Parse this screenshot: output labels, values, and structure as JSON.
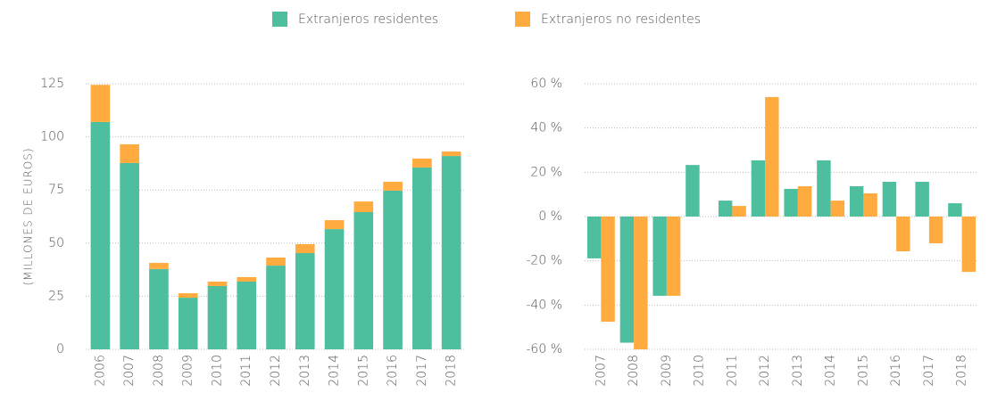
{
  "chart_data": [
    {
      "type": "stacked-bar",
      "y_label": "(MILLONES DE EUROS)",
      "categories": [
        "2006",
        "2007",
        "2008",
        "2009",
        "2010",
        "2011",
        "2012",
        "2013",
        "2014",
        "2015",
        "2016",
        "2017",
        "2018"
      ],
      "series": [
        {
          "name": "Extranjeros residentes",
          "color": "#4dbf9f",
          "values": [
            107,
            87.7,
            37.8,
            24.3,
            29.8,
            31.9,
            39.4,
            45.3,
            56.6,
            64.6,
            74.7,
            85.6,
            91
          ]
        },
        {
          "name": "Extranjeros no residentes",
          "color": "#ffab40",
          "values": [
            17.5,
            8.8,
            2.9,
            2.1,
            2.1,
            2.1,
            3.8,
            4.2,
            4.2,
            5,
            4.2,
            4.2,
            2.1
          ]
        }
      ],
      "ylim": [
        0,
        125
      ],
      "yticks": [
        0,
        25,
        50,
        75,
        100,
        125
      ],
      "grid": true
    },
    {
      "type": "grouped-bar",
      "categories": [
        "2007",
        "2008",
        "2009",
        "2010",
        "2011",
        "2012",
        "2013",
        "2014",
        "2015",
        "2016",
        "2017",
        "2018"
      ],
      "series": [
        {
          "color": "#4dbf9f",
          "values": [
            -18.9,
            -57,
            -35.8,
            23.3,
            7.2,
            25.4,
            12.5,
            25.4,
            13.7,
            15.7,
            15.7,
            6
          ]
        },
        {
          "color": "#ffab40",
          "values": [
            -47.5,
            -60,
            -35.8,
            0,
            4.8,
            54,
            13.7,
            7.2,
            10.5,
            -15.7,
            -12.1,
            -25
          ]
        }
      ],
      "ylim": [
        -60,
        60
      ],
      "yticks": [
        {
          "value": -60,
          "label": "-60 %"
        },
        {
          "value": -40,
          "label": "-40 %"
        },
        {
          "value": -20,
          "label": "-20 %"
        },
        {
          "value": 0,
          "label": "0 %"
        },
        {
          "value": 20,
          "label": "20 %"
        },
        {
          "value": 40,
          "label": "40 %"
        },
        {
          "value": 60,
          "label": "60 %"
        }
      ],
      "grid": true
    }
  ]
}
